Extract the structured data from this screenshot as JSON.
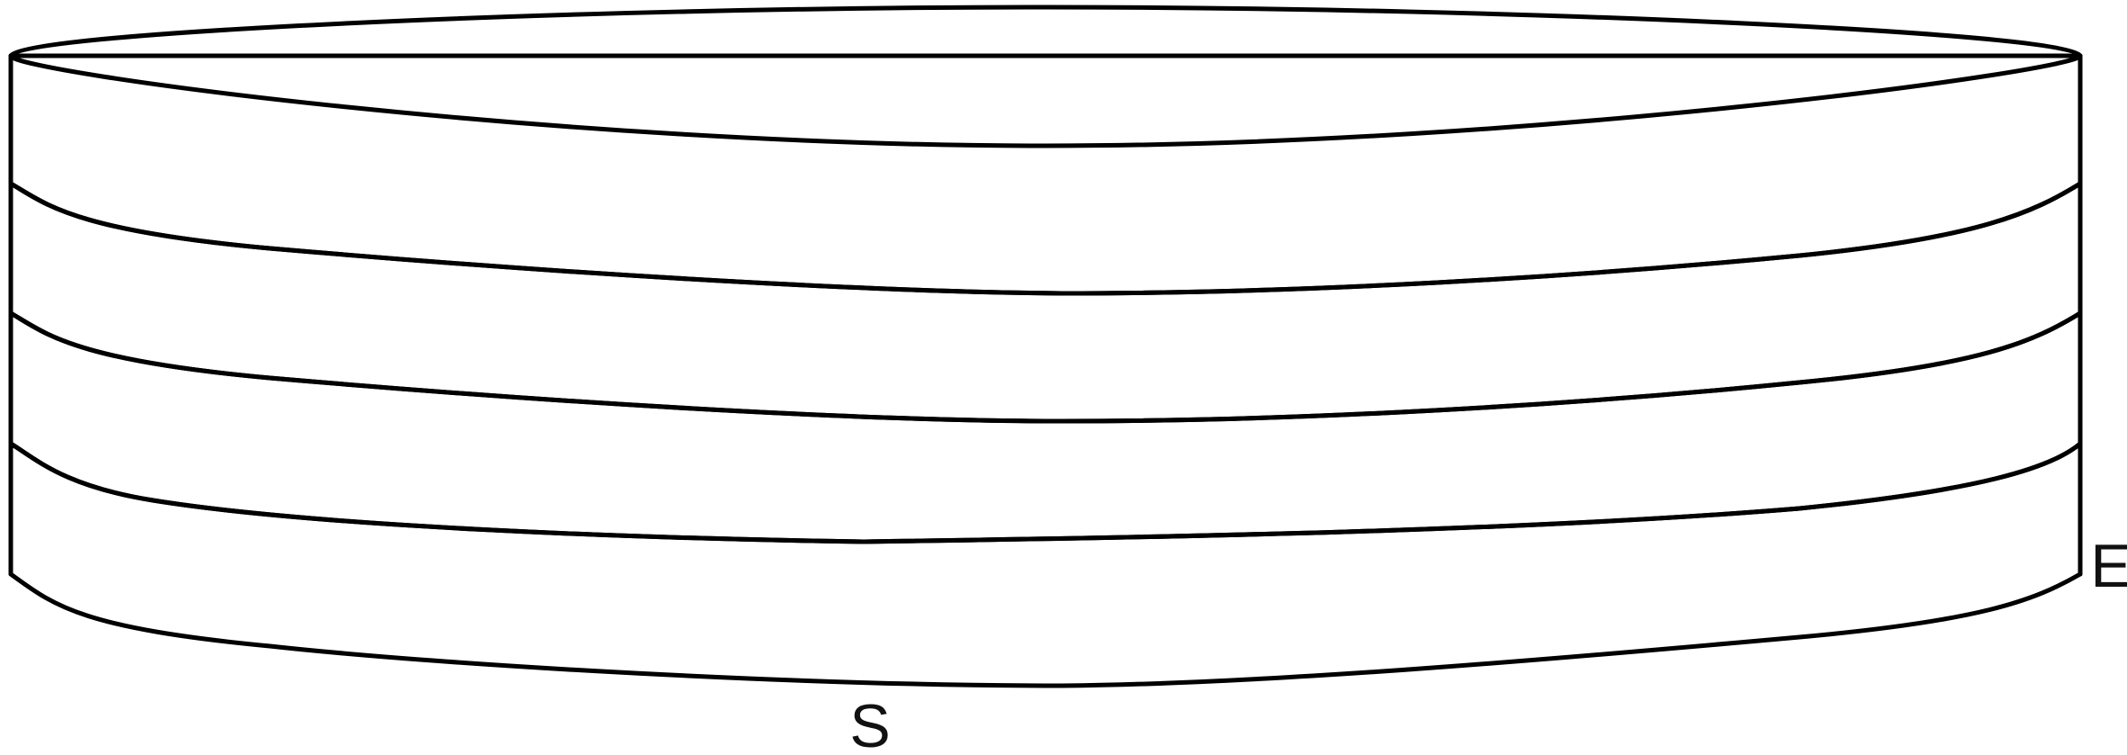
{
  "labels": {
    "s": "S",
    "e": "E"
  },
  "colors": {
    "layer_top": "#ffffff",
    "layer_2": "#dce6f2",
    "layer_3": "#b9cde4",
    "layer_bottom": "#4e81bd",
    "outline": "#000000"
  }
}
